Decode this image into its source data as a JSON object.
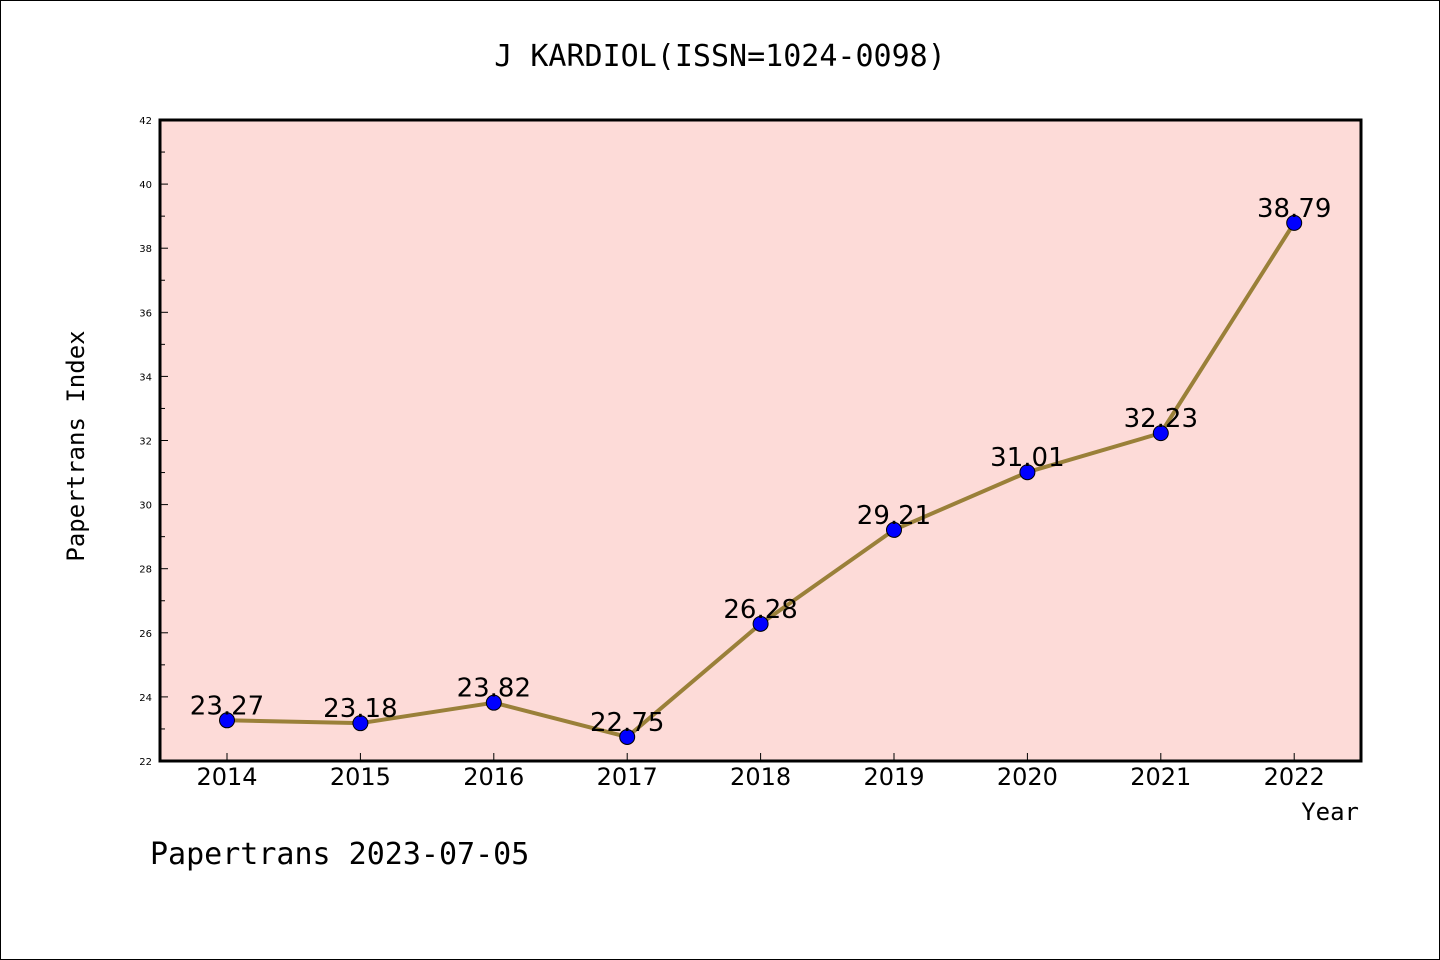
{
  "chart_data": {
    "type": "line",
    "title": "J KARDIOL(ISSN=1024-0098)",
    "xlabel": "Year",
    "ylabel": "Papertrans Index",
    "categories": [
      "2014",
      "2015",
      "2016",
      "2017",
      "2018",
      "2019",
      "2020",
      "2021",
      "2022"
    ],
    "values": [
      23.27,
      23.18,
      23.82,
      22.75,
      26.28,
      29.21,
      31.01,
      32.23,
      38.79
    ],
    "value_labels": [
      "23.27",
      "23.18",
      "23.82",
      "22.75",
      "26.28",
      "29.21",
      "31.01",
      "32.23",
      "38.79"
    ],
    "ylim": [
      22,
      42
    ],
    "yticks": [
      "22",
      "24",
      "26",
      "28",
      "30",
      "32",
      "34",
      "36",
      "38",
      "40",
      "42"
    ],
    "grid": false,
    "footer": "Papertrans 2023-07-05",
    "colors": {
      "plot_background": "#fddbd8",
      "line": "#9a8039",
      "marker": "#0000ff"
    }
  }
}
